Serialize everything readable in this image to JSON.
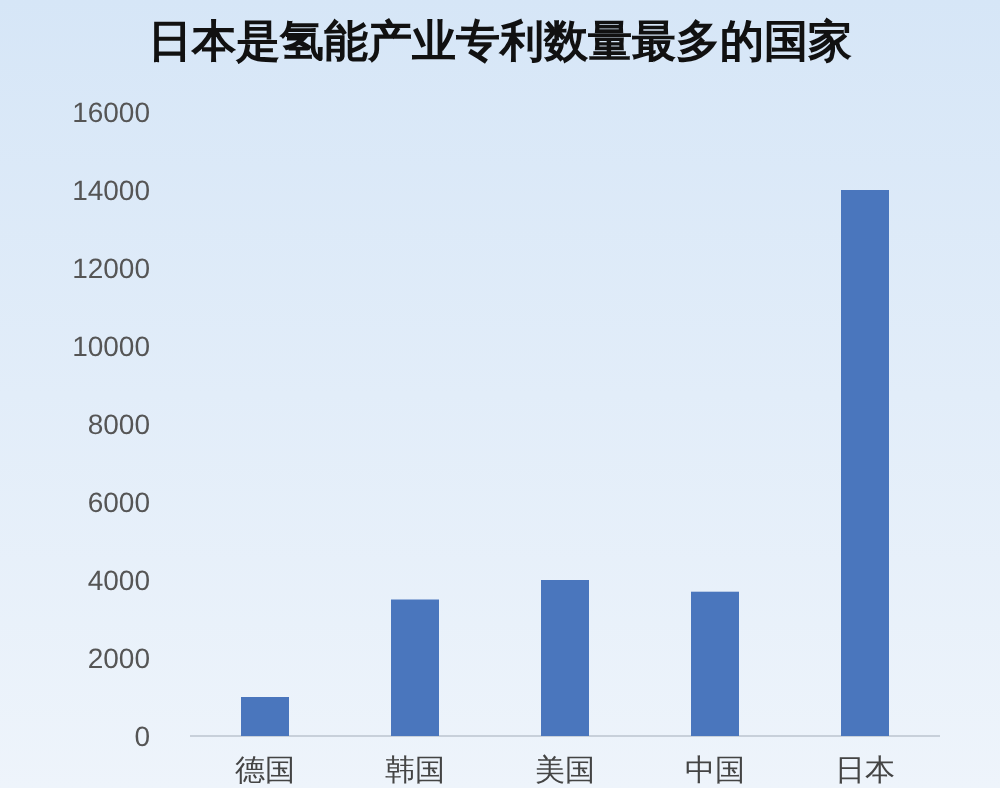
{
  "chart_data": {
    "type": "bar",
    "title": "日本是氢能产业专利数量最多的国家",
    "categories": [
      "德国",
      "韩国",
      "美国",
      "中国",
      "日本"
    ],
    "values": [
      1000,
      3500,
      4000,
      3700,
      14000
    ],
    "color": "#4a76bd",
    "ylim": [
      0,
      16000
    ],
    "yticks": [
      0,
      2000,
      4000,
      6000,
      8000,
      10000,
      12000,
      14000,
      16000
    ],
    "grid": false
  }
}
